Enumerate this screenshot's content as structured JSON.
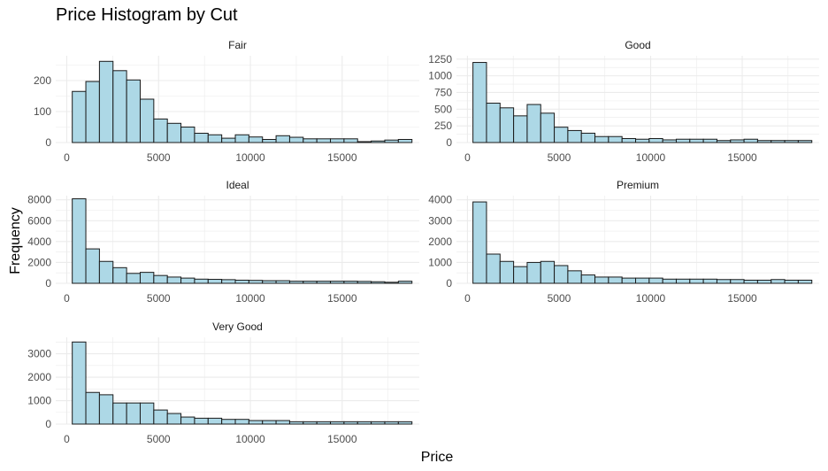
{
  "title": "Price Histogram by Cut",
  "xlabel": "Price",
  "ylabel": "Frequency",
  "colors": {
    "bar_fill": "#add8e6",
    "bar_stroke": "#1a1a1a",
    "grid": "#ebebeb"
  },
  "chart_data": {
    "type": "bar",
    "title": "Price Histogram by Cut",
    "xlabel": "Price",
    "ylabel": "Frequency",
    "grid": true,
    "bin_width": 740,
    "xlim": [
      -600,
      19200
    ],
    "x_ticks": [
      0,
      5000,
      10000,
      15000
    ],
    "x_tick_labels": [
      "0",
      "5000",
      "10000",
      "15000"
    ],
    "bin_starts": [
      300,
      1040,
      1780,
      2520,
      3260,
      4000,
      4740,
      5480,
      6220,
      6960,
      7700,
      8440,
      9180,
      9920,
      10660,
      11400,
      12140,
      12880,
      13620,
      14360,
      15100,
      15840,
      16580,
      17320,
      18060
    ],
    "panels": [
      {
        "name": "Fair",
        "ylim": [
          0,
          280
        ],
        "y_ticks": [
          0,
          100,
          200
        ],
        "y_tick_labels": [
          "0",
          "100",
          "200"
        ],
        "values": [
          165,
          197,
          262,
          232,
          202,
          140,
          76,
          62,
          50,
          30,
          25,
          14,
          25,
          18,
          10,
          22,
          17,
          12,
          12,
          12,
          12,
          3,
          5,
          8,
          10
        ]
      },
      {
        "name": "Good",
        "ylim": [
          0,
          1300
        ],
        "y_ticks": [
          0,
          250,
          500,
          750,
          1000,
          1250
        ],
        "y_tick_labels": [
          "0",
          "250",
          "500",
          "750",
          "1000",
          "1250"
        ],
        "values": [
          1200,
          590,
          520,
          400,
          570,
          440,
          230,
          180,
          140,
          90,
          90,
          60,
          50,
          60,
          40,
          50,
          50,
          50,
          30,
          40,
          50,
          30,
          30,
          30,
          30
        ]
      },
      {
        "name": "Ideal",
        "ylim": [
          0,
          8400
        ],
        "y_ticks": [
          0,
          2000,
          4000,
          6000,
          8000
        ],
        "y_tick_labels": [
          "0",
          "2000",
          "4000",
          "6000",
          "8000"
        ],
        "values": [
          8100,
          3300,
          2100,
          1500,
          950,
          1050,
          750,
          600,
          500,
          400,
          380,
          350,
          300,
          280,
          250,
          250,
          200,
          200,
          200,
          200,
          200,
          180,
          150,
          100,
          200
        ]
      },
      {
        "name": "Premium",
        "ylim": [
          0,
          4200
        ],
        "y_ticks": [
          0,
          1000,
          2000,
          3000,
          4000
        ],
        "y_tick_labels": [
          "0",
          "1000",
          "2000",
          "3000",
          "4000"
        ],
        "values": [
          3900,
          1400,
          1050,
          800,
          1000,
          1050,
          850,
          600,
          400,
          300,
          300,
          250,
          250,
          250,
          200,
          200,
          200,
          200,
          180,
          180,
          150,
          150,
          180,
          150,
          150
        ]
      },
      {
        "name": "Very Good",
        "ylim": [
          0,
          3700
        ],
        "y_ticks": [
          0,
          1000,
          2000,
          3000
        ],
        "y_tick_labels": [
          "0",
          "1000",
          "2000",
          "3000"
        ],
        "values": [
          3500,
          1350,
          1250,
          900,
          900,
          900,
          600,
          450,
          300,
          250,
          250,
          200,
          200,
          150,
          150,
          150,
          100,
          100,
          100,
          100,
          100,
          100,
          100,
          100,
          100
        ]
      }
    ]
  }
}
